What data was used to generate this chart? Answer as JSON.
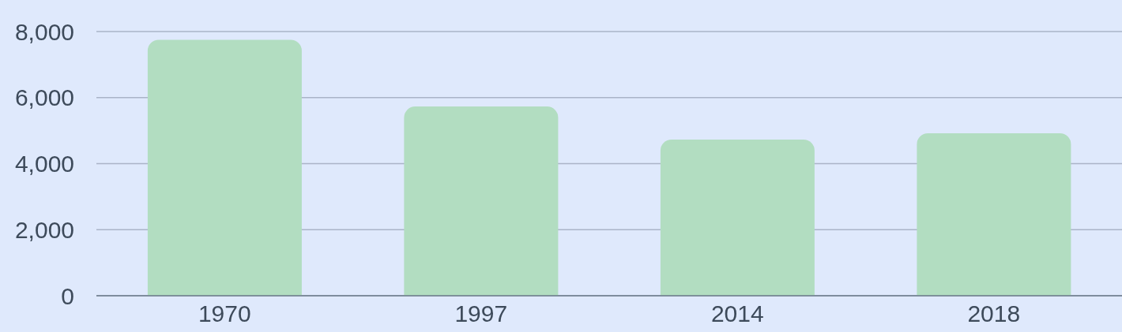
{
  "chart_data": {
    "type": "bar",
    "categories": [
      "1970",
      "1997",
      "2014",
      "2018"
    ],
    "values": [
      7750,
      5730,
      4730,
      4920
    ],
    "color": "#b2ddc1",
    "ylim": [
      0,
      8000
    ],
    "yticks": [
      0,
      {
        "value": 2000,
        "label": "2,000"
      },
      {
        "value": 4000,
        "label": "4,000"
      },
      {
        "value": 6000,
        "label": "6,000"
      },
      {
        "value": 8000,
        "label": "8,000"
      }
    ],
    "grid": "y"
  }
}
